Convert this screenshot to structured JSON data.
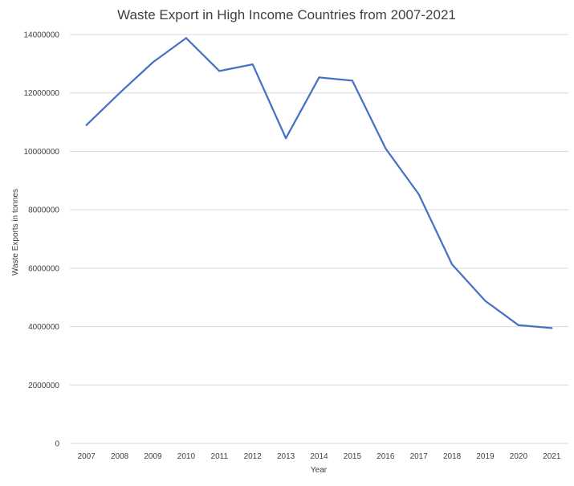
{
  "chart_data": {
    "type": "line",
    "title": "Waste Export in High Income Countries from 2007-2021",
    "xlabel": "Year",
    "ylabel": "Waste Exports in tonnes",
    "ylim": [
      0,
      14000000
    ],
    "yticks": [
      "0",
      "2000000",
      "4000000",
      "6000000",
      "8000000",
      "10000000",
      "12000000",
      "14000000"
    ],
    "categories": [
      "2007",
      "2008",
      "2009",
      "2010",
      "2011",
      "2012",
      "2013",
      "2014",
      "2015",
      "2016",
      "2017",
      "2018",
      "2019",
      "2020",
      "2021"
    ],
    "series": [
      {
        "values": [
          10900000,
          12000000,
          13050000,
          13880000,
          12750000,
          12980000,
          10450000,
          12530000,
          12420000,
          10100000,
          8530000,
          6130000,
          4880000,
          4050000,
          3950000
        ],
        "color": "#4472c4"
      }
    ],
    "grid": true,
    "legend": "none"
  }
}
